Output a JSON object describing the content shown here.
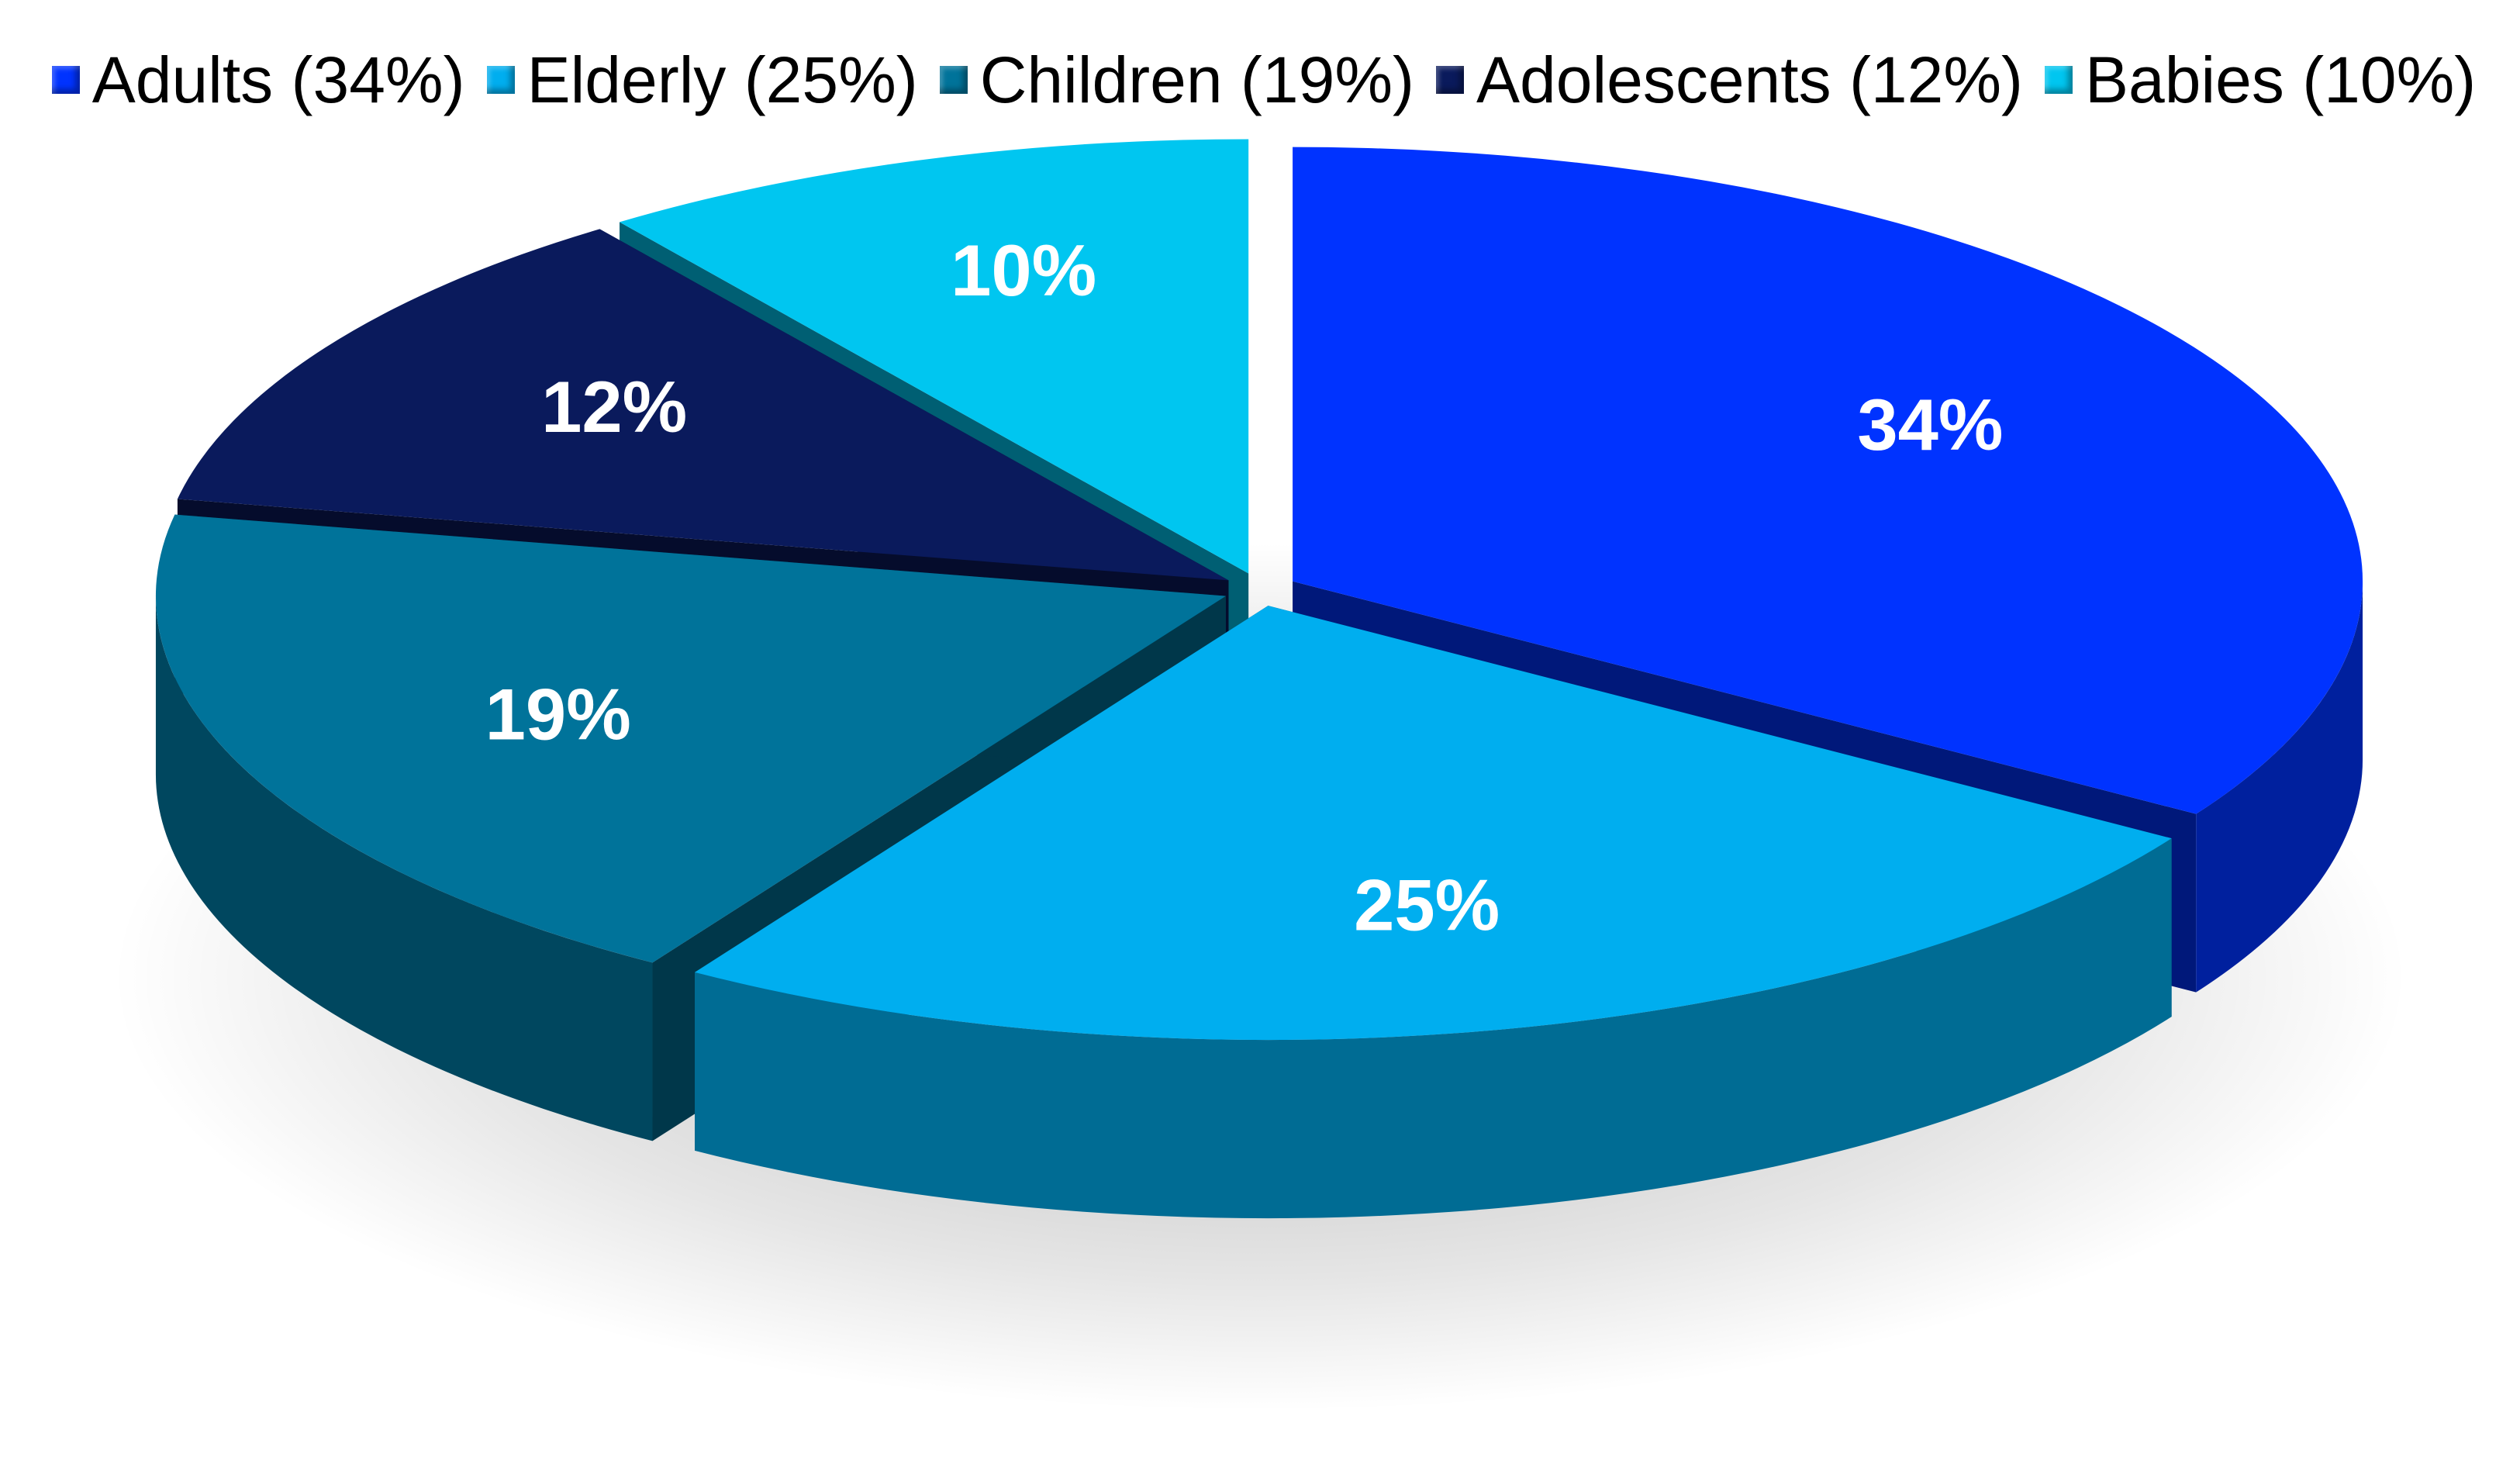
{
  "chart_data": {
    "type": "pie",
    "title": "",
    "legend_position": "top",
    "slices": [
      {
        "name": "Adults (34%)",
        "value": 34,
        "label": "34%",
        "color": "#0033FF"
      },
      {
        "name": "Elderly (25%)",
        "value": 25,
        "label": "25%",
        "color": "#00AEEF"
      },
      {
        "name": "Children (19%)",
        "value": 19,
        "label": "19%",
        "color": "#00739A"
      },
      {
        "name": "Adolescents (12%)",
        "value": 12,
        "label": "12%",
        "color": "#0A1A5C"
      },
      {
        "name": "Babies (10%)",
        "value": 10,
        "label": "10%",
        "color": "#00C6F0"
      }
    ]
  }
}
